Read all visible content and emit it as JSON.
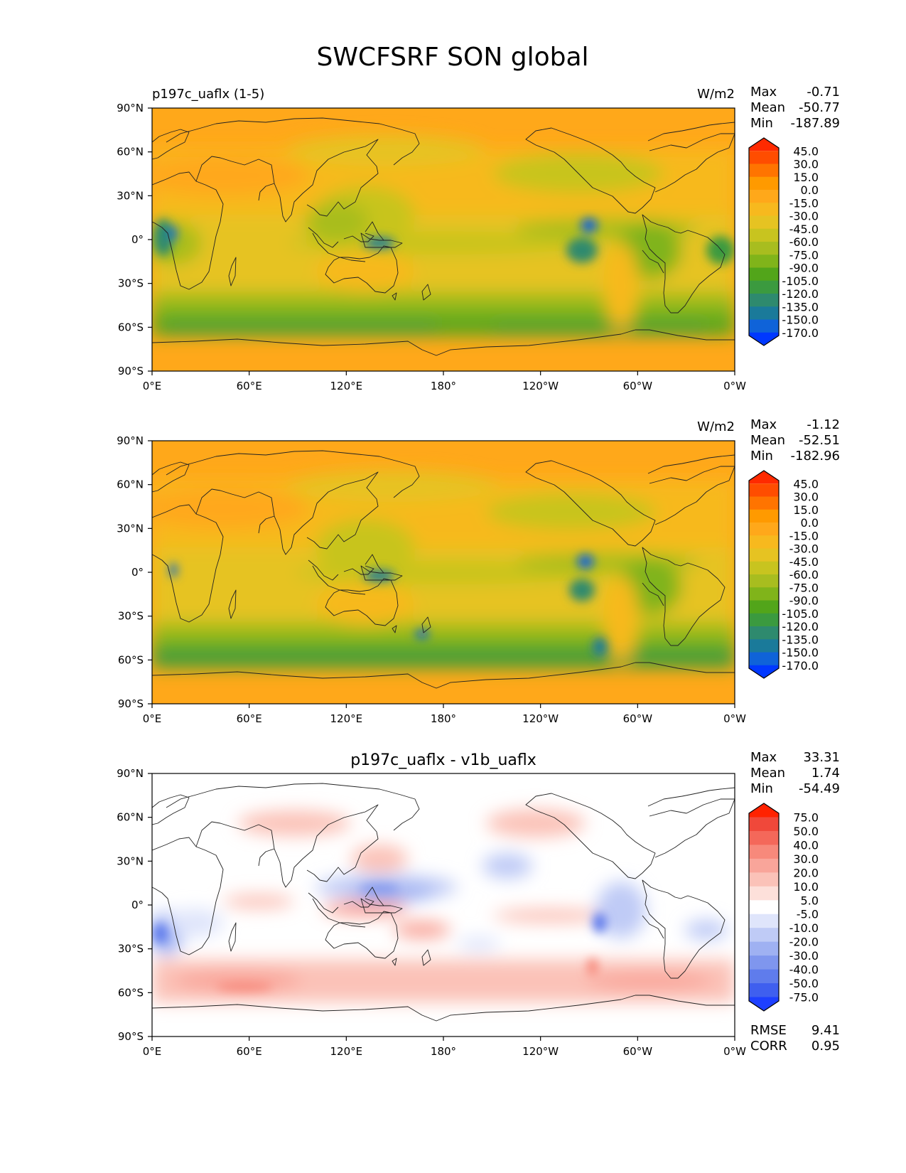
{
  "title": "SWCFSRF SON global",
  "x_ticks": [
    "0°E",
    "60°E",
    "120°E",
    "180°",
    "120°W",
    "60°W",
    "0°W"
  ],
  "y_ticks": [
    "90°N",
    "60°N",
    "30°N",
    "0°",
    "30°S",
    "60°S",
    "90°S"
  ],
  "panels": [
    {
      "left_title": "p197c_uaflx (1-5)",
      "center_title": "",
      "units": "W/m2",
      "stats": [
        {
          "label": "Max",
          "value": "-0.71"
        },
        {
          "label": "Mean",
          "value": "-50.77"
        },
        {
          "label": "Min",
          "value": "-187.89"
        }
      ],
      "colorbar": {
        "levels": [
          "45.0",
          "30.0",
          "15.0",
          "0.0",
          "-15.0",
          "-30.0",
          "-45.0",
          "-60.0",
          "-75.0",
          "-90.0",
          "-105.0",
          "-120.0",
          "-135.0",
          "-150.0",
          "-170.0"
        ],
        "colors": [
          "#ff2a00",
          "#ff4d00",
          "#ff7400",
          "#ff9a00",
          "#ffa81a",
          "#f7b91e",
          "#e6c322",
          "#c8c41f",
          "#a8bd1f",
          "#80b41a",
          "#52a51a",
          "#3b9a3f",
          "#2e8a6e",
          "#1a7a9a",
          "#0f63d9",
          "#0038ff"
        ]
      }
    },
    {
      "left_title": "",
      "center_title": "",
      "units": "W/m2",
      "stats": [
        {
          "label": "Max",
          "value": "-1.12"
        },
        {
          "label": "Mean",
          "value": "-52.51"
        },
        {
          "label": "Min",
          "value": "-182.96"
        }
      ],
      "colorbar": {
        "levels": [
          "45.0",
          "30.0",
          "15.0",
          "0.0",
          "-15.0",
          "-30.0",
          "-45.0",
          "-60.0",
          "-75.0",
          "-90.0",
          "-105.0",
          "-120.0",
          "-135.0",
          "-150.0",
          "-170.0"
        ],
        "colors": [
          "#ff2a00",
          "#ff4d00",
          "#ff7400",
          "#ff9a00",
          "#ffa81a",
          "#f7b91e",
          "#e6c322",
          "#c8c41f",
          "#a8bd1f",
          "#80b41a",
          "#52a51a",
          "#3b9a3f",
          "#2e8a6e",
          "#1a7a9a",
          "#0f63d9",
          "#0038ff"
        ]
      }
    },
    {
      "left_title": "",
      "center_title": "p197c_uaflx - v1b_uaflx",
      "units": "",
      "stats": [
        {
          "label": "Max",
          "value": "33.31"
        },
        {
          "label": "Mean",
          "value": "1.74"
        },
        {
          "label": "Min",
          "value": "-54.49"
        }
      ],
      "extra_stats": [
        {
          "label": "RMSE",
          "value": "9.41"
        },
        {
          "label": "CORR",
          "value": "0.95"
        }
      ],
      "colorbar": {
        "levels": [
          "75.0",
          "50.0",
          "40.0",
          "30.0",
          "20.0",
          "10.0",
          "5.0",
          "-5.0",
          "-10.0",
          "-20.0",
          "-30.0",
          "-40.0",
          "-50.0",
          "-75.0"
        ],
        "colors": [
          "#ff2200",
          "#f0483a",
          "#f4685a",
          "#f7897b",
          "#f9a59a",
          "#fbc2b8",
          "#fde0da",
          "#ffffff",
          "#dfe5fb",
          "#bfcbf6",
          "#9fb1f2",
          "#7f96ee",
          "#5f7cec",
          "#3f5fef",
          "#1e40ff"
        ]
      }
    }
  ]
}
